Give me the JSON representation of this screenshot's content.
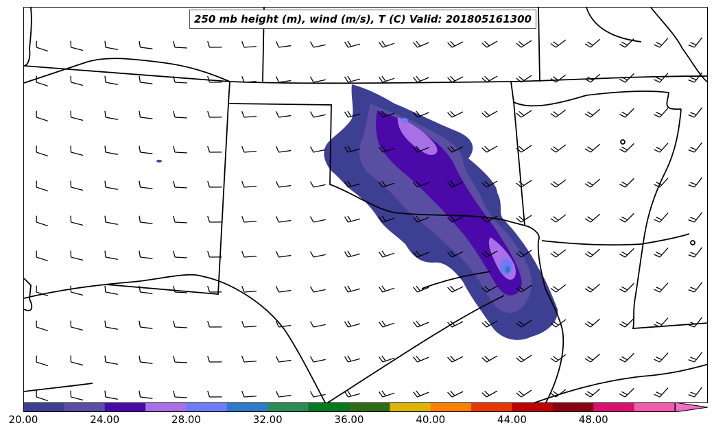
{
  "title": "250 mb height (m), wind (m/s), T (C) Valid: 201805161300",
  "colorbar": {
    "min": 20.0,
    "max": 52.0,
    "step": 2.0,
    "extend": "max",
    "tick_labels": [
      "20.00",
      "24.00",
      "28.00",
      "32.00",
      "36.00",
      "40.00",
      "44.00",
      "48.00"
    ],
    "colors": [
      "#3d3f93",
      "#5a4ea3",
      "#4a09a8",
      "#a86fe6",
      "#6f7cf7",
      "#2e7bc8",
      "#2e8b57",
      "#007a1f",
      "#2f6b12",
      "#ddb400",
      "#ff8000",
      "#e83600",
      "#c00000",
      "#8b0010",
      "#d81070",
      "#f35cad"
    ],
    "extend_color": "#f56fc0"
  },
  "map": {
    "region": "Southern Plains (Oklahoma, Texas, Kansas, Arkansas)",
    "field": "250 mb temperature (C)",
    "wind_barbs": "westerly to west-southwesterly flow"
  }
}
